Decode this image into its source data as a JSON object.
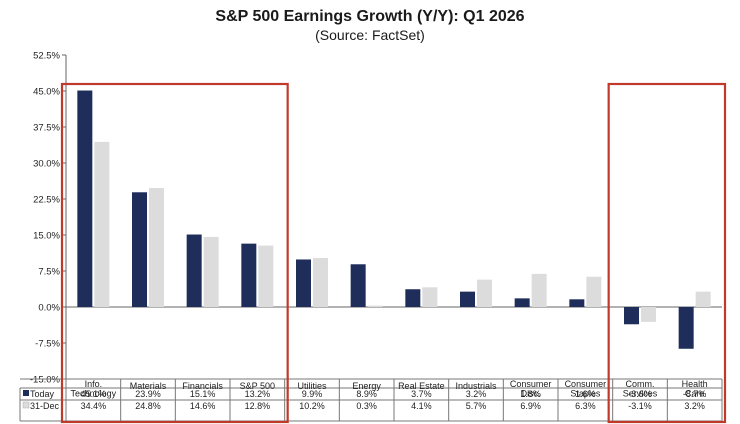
{
  "chart_data": {
    "type": "bar",
    "title": "S&P 500 Earnings Growth (Y/Y): Q1 2026",
    "subtitle": "(Source: FactSet)",
    "categories": [
      [
        "Info.",
        "Technology"
      ],
      [
        "Materials"
      ],
      [
        "Financials"
      ],
      [
        "S&P 500"
      ],
      [
        "Utilities"
      ],
      [
        "Energy"
      ],
      [
        "Real Estate"
      ],
      [
        "Industrials"
      ],
      [
        "Consumer",
        "Disc."
      ],
      [
        "Consumer",
        "Staples"
      ],
      [
        "Comm.",
        "Services"
      ],
      [
        "Health",
        "Care"
      ]
    ],
    "series": [
      {
        "name": "Today",
        "color": "#1f2d5a",
        "values": [
          45.1,
          23.9,
          15.1,
          13.2,
          9.9,
          8.9,
          3.7,
          3.2,
          1.8,
          1.6,
          -3.6,
          -8.7
        ],
        "labels": [
          "45.1%",
          "23.9%",
          "15.1%",
          "13.2%",
          "9.9%",
          "8.9%",
          "3.7%",
          "3.2%",
          "1.8%",
          "1.6%",
          "-3.6%",
          "-8.7%"
        ]
      },
      {
        "name": "31-Dec",
        "color": "#dcdcdc",
        "values": [
          34.4,
          24.8,
          14.6,
          12.8,
          10.2,
          0.3,
          4.1,
          5.7,
          6.9,
          6.3,
          -3.1,
          3.2
        ],
        "labels": [
          "34.4%",
          "24.8%",
          "14.6%",
          "12.8%",
          "10.2%",
          "0.3%",
          "4.1%",
          "5.7%",
          "6.9%",
          "6.3%",
          "-3.1%",
          "3.2%"
        ]
      }
    ],
    "ylim": [
      -15,
      52.5
    ],
    "yticks": [
      52.5,
      45.0,
      37.5,
      30.0,
      22.5,
      15.0,
      7.5,
      0.0,
      -7.5,
      -15.0
    ],
    "ytick_labels": [
      "52.5%",
      "45.0%",
      "37.5%",
      "30.0%",
      "22.5%",
      "15.0%",
      "7.5%",
      "0.0%",
      "-7.5%",
      "-15.0%"
    ],
    "highlight_color": "#c0392b",
    "highlight_groups": [
      {
        "from": 0,
        "to": 3
      },
      {
        "from": 10,
        "to": 11
      }
    ],
    "legend": "data-table-left"
  }
}
